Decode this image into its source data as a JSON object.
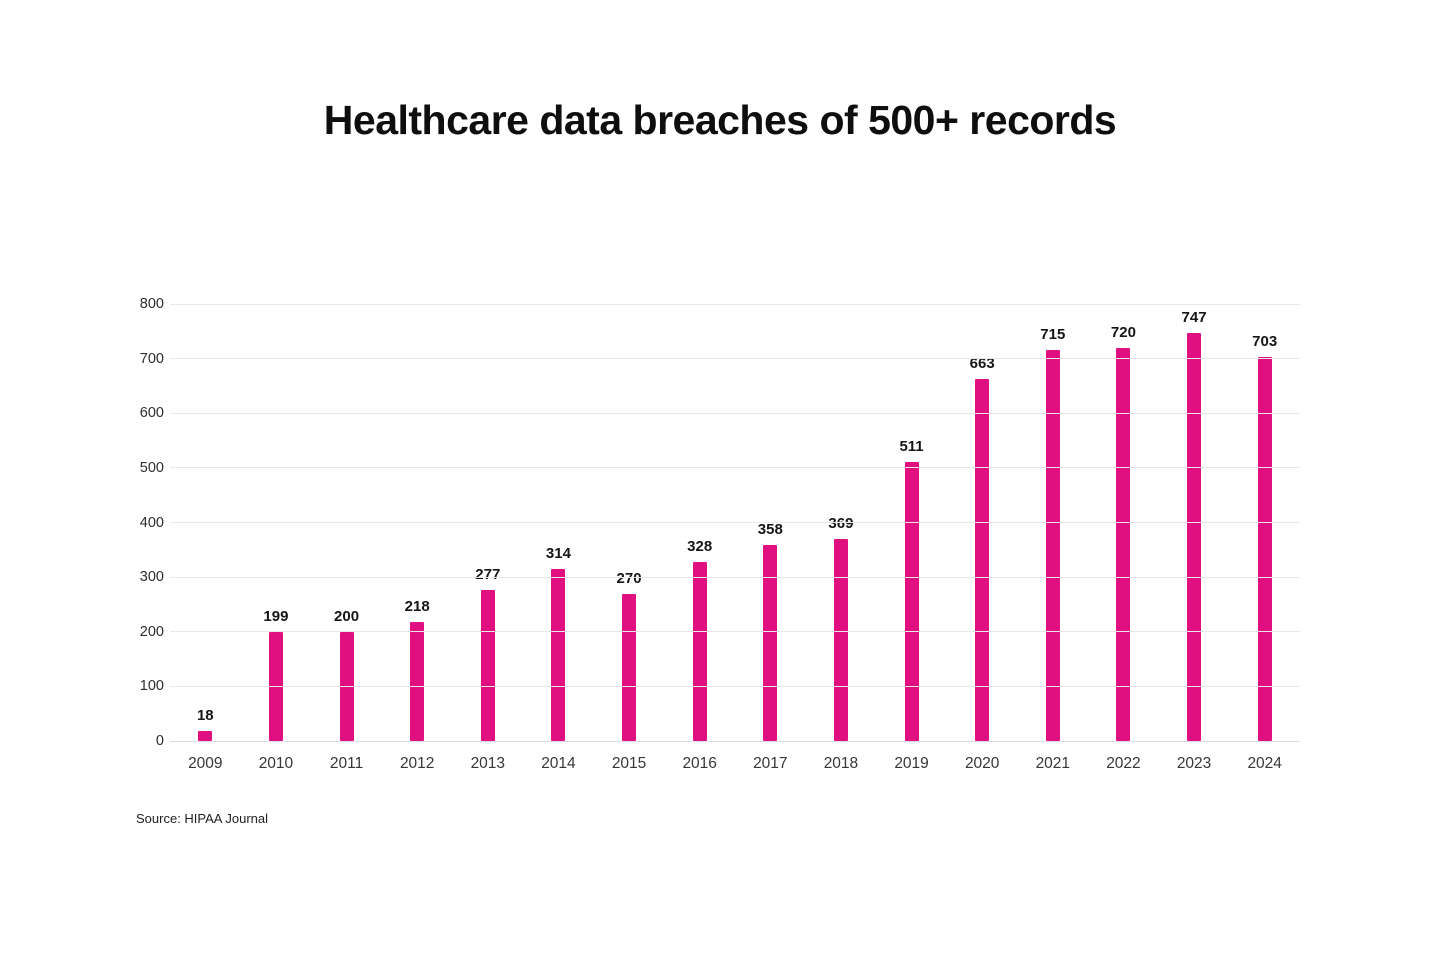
{
  "page": {
    "background": "#ffffff"
  },
  "chart_data": {
    "type": "bar",
    "title": "Healthcare data breaches of 500+ records",
    "categories": [
      "2009",
      "2010",
      "2011",
      "2012",
      "2013",
      "2014",
      "2015",
      "2016",
      "2017",
      "2018",
      "2019",
      "2020",
      "2021",
      "2022",
      "2023",
      "2024"
    ],
    "values": [
      18,
      199,
      200,
      218,
      277,
      314,
      270,
      328,
      358,
      369,
      511,
      663,
      715,
      720,
      747,
      703
    ],
    "xlabel": "",
    "ylabel": "",
    "ylim": [
      0,
      800
    ],
    "yticks": [
      0,
      100,
      200,
      300,
      400,
      500,
      600,
      700,
      800
    ],
    "grid": true,
    "legend": false,
    "value_labels": true,
    "bar_color": "#e01080",
    "gridline_color": "#e8e8e8",
    "label_color": "#161616",
    "axis_text_color": "#373737"
  },
  "source": {
    "text": "Source: HIPAA Journal"
  }
}
